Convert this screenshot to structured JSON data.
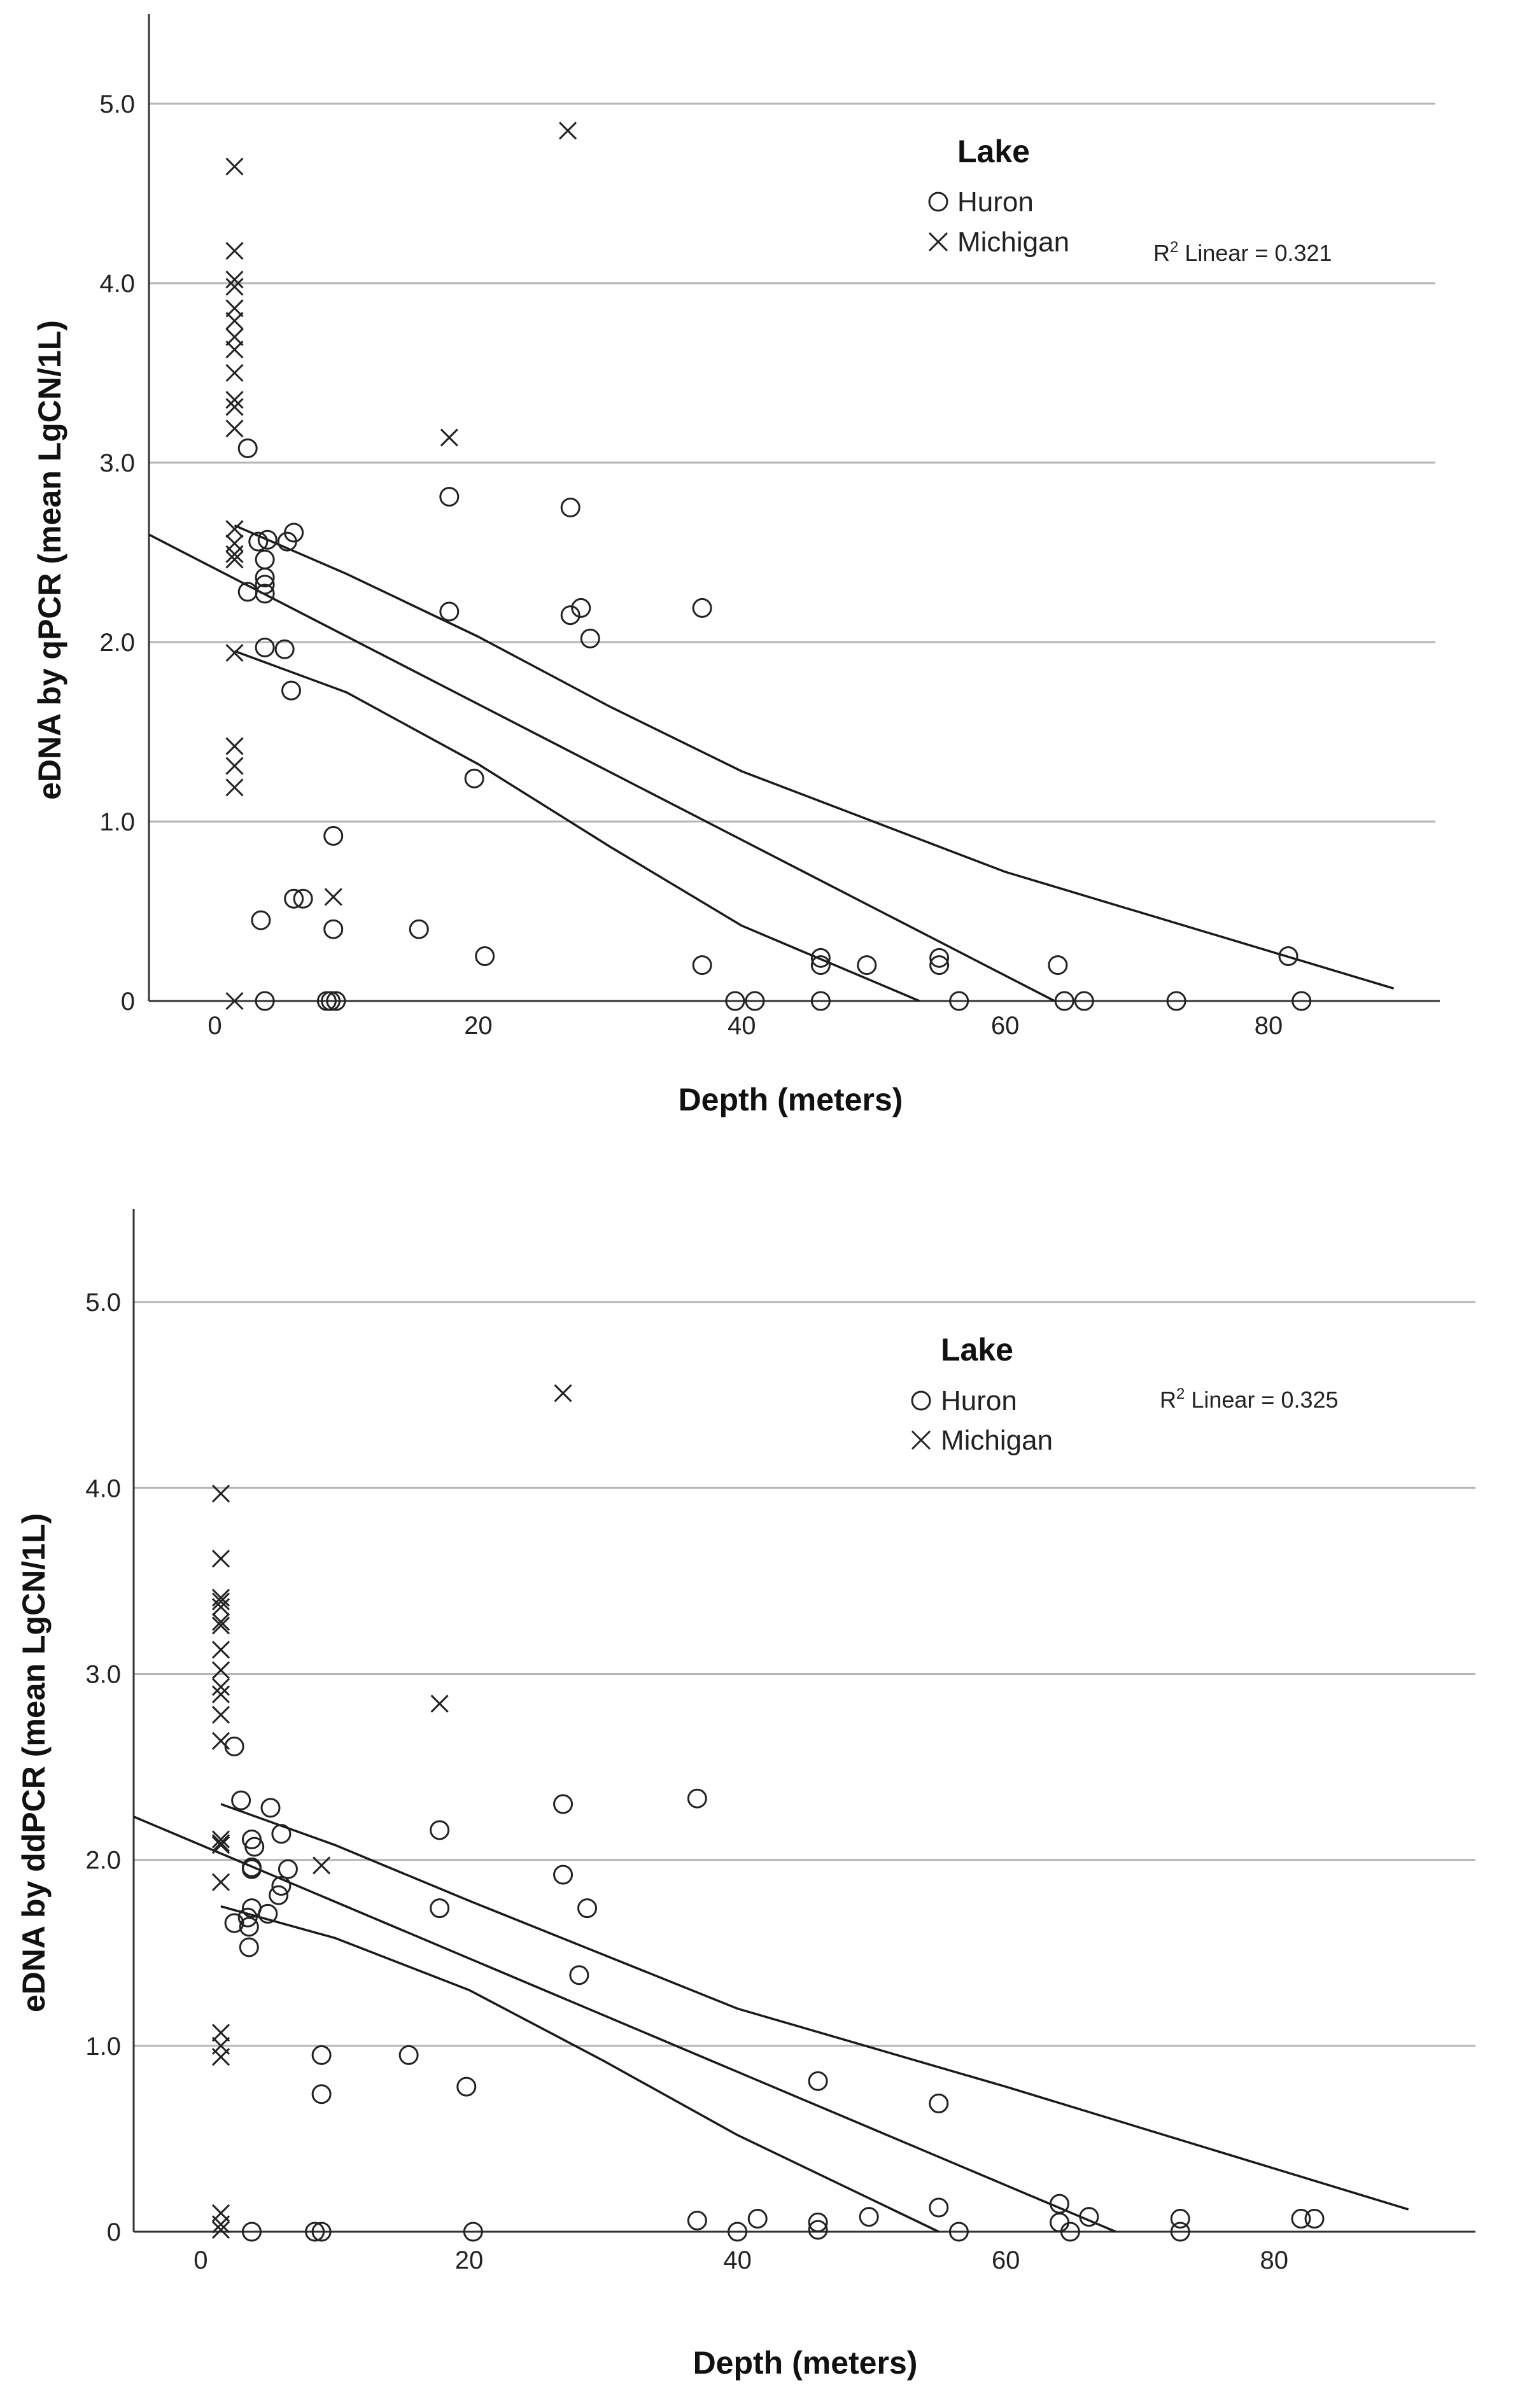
{
  "chart_data": [
    {
      "type": "scatter",
      "title": "",
      "xlabel": "Depth (meters)",
      "ylabel": "eDNA by qPCR (mean LgCN/1L)",
      "xlim": [
        -5,
        93
      ],
      "ylim": [
        0,
        5.5
      ],
      "xticks": [
        0,
        20,
        40,
        60,
        80
      ],
      "yticks": [
        0,
        1.0,
        2.0,
        3.0,
        4.0,
        5.0
      ],
      "xtick_labels": [
        "0",
        "20",
        "40",
        "60",
        "80"
      ],
      "ytick_labels": [
        "0",
        "1.0",
        "2.0",
        "3.0",
        "4.0",
        "5.0"
      ],
      "grid": "horizontal",
      "legend": {
        "title": "Lake",
        "position": "top-right",
        "entries": [
          {
            "label": "Huron",
            "marker": "circle"
          },
          {
            "label": "Michigan",
            "marker": "x"
          }
        ]
      },
      "annotation": {
        "r2_prefix": "R",
        "r2_sup": "2",
        "r2_suffix": " Linear = 0.321"
      },
      "fit": {
        "slope": -0.0378,
        "intercept": 2.41
      },
      "ci_lower": [
        [
          1.5,
          1.95
        ],
        [
          10,
          1.72
        ],
        [
          20,
          1.32
        ],
        [
          30,
          0.86
        ],
        [
          40,
          0.42
        ],
        [
          53.5,
          0.0
        ]
      ],
      "ci_upper": [
        [
          1.5,
          2.65
        ],
        [
          10,
          2.38
        ],
        [
          20,
          2.03
        ],
        [
          30,
          1.64
        ],
        [
          40,
          1.28
        ],
        [
          60,
          0.72
        ],
        [
          89.5,
          0.07
        ]
      ],
      "series": [
        {
          "name": "Huron",
          "marker": "circle",
          "points": [
            [
              2.5,
              3.08
            ],
            [
              3.3,
              2.56
            ],
            [
              4.0,
              2.57
            ],
            [
              6.0,
              2.61
            ],
            [
              5.5,
              2.56
            ],
            [
              2.5,
              2.28
            ],
            [
              3.8,
              2.46
            ],
            [
              3.8,
              2.36
            ],
            [
              3.8,
              2.32
            ],
            [
              3.8,
              2.27
            ],
            [
              3.8,
              1.97
            ],
            [
              5.3,
              1.96
            ],
            [
              5.8,
              1.73
            ],
            [
              9.0,
              0.92
            ],
            [
              6.0,
              0.57
            ],
            [
              6.7,
              0.57
            ],
            [
              3.5,
              0.45
            ],
            [
              9.0,
              0.4
            ],
            [
              15.5,
              0.4
            ],
            [
              20.5,
              0.25
            ],
            [
              3.8,
              0.0
            ],
            [
              8.5,
              0.0
            ],
            [
              8.8,
              0.0
            ],
            [
              9.2,
              0.0
            ],
            [
              17.8,
              2.81
            ],
            [
              17.8,
              2.17
            ],
            [
              19.7,
              1.24
            ],
            [
              27.0,
              2.75
            ],
            [
              27.0,
              2.15
            ],
            [
              27.8,
              2.19
            ],
            [
              28.5,
              2.02
            ],
            [
              37.0,
              2.19
            ],
            [
              37.0,
              0.2
            ],
            [
              39.5,
              0.0
            ],
            [
              41.0,
              0.0
            ],
            [
              46.0,
              0.24
            ],
            [
              46.0,
              0.2
            ],
            [
              46.0,
              0.0
            ],
            [
              49.5,
              0.2
            ],
            [
              55.0,
              0.24
            ],
            [
              55.0,
              0.2
            ],
            [
              56.5,
              0.0
            ],
            [
              64.0,
              0.2
            ],
            [
              64.5,
              0.0
            ],
            [
              66.0,
              0.0
            ],
            [
              73.0,
              0.0
            ],
            [
              81.5,
              0.25
            ],
            [
              82.5,
              0.0
            ]
          ]
        },
        {
          "name": "Michigan",
          "marker": "x",
          "points": [
            [
              1.5,
              4.65
            ],
            [
              1.5,
              4.18
            ],
            [
              1.5,
              4.02
            ],
            [
              1.5,
              3.98
            ],
            [
              1.5,
              3.86
            ],
            [
              1.5,
              3.79
            ],
            [
              1.5,
              3.7
            ],
            [
              1.5,
              3.63
            ],
            [
              1.5,
              3.5
            ],
            [
              1.5,
              3.35
            ],
            [
              1.5,
              3.31
            ],
            [
              1.5,
              3.19
            ],
            [
              1.5,
              2.63
            ],
            [
              1.5,
              2.55
            ],
            [
              1.5,
              2.49
            ],
            [
              1.5,
              2.46
            ],
            [
              1.5,
              1.94
            ],
            [
              1.5,
              1.42
            ],
            [
              1.5,
              1.31
            ],
            [
              1.5,
              1.19
            ],
            [
              1.5,
              0.0
            ],
            [
              9.0,
              0.58
            ],
            [
              17.8,
              3.14
            ],
            [
              26.8,
              4.85
            ]
          ]
        }
      ]
    },
    {
      "type": "scatter",
      "title": "",
      "xlabel": "Depth (meters)",
      "ylabel": "eDNA by ddPCR (mean LgCN/1L)",
      "xlim": [
        -5,
        95
      ],
      "ylim": [
        0,
        5.5
      ],
      "xticks": [
        0,
        20,
        40,
        60,
        80
      ],
      "yticks": [
        0,
        1.0,
        2.0,
        3.0,
        4.0,
        5.0
      ],
      "xtick_labels": [
        "0",
        "20",
        "40",
        "60",
        "80"
      ],
      "ytick_labels": [
        "0",
        "1.0",
        "2.0",
        "3.0",
        "4.0",
        "5.0"
      ],
      "grid": "horizontal",
      "legend": {
        "title": "Lake",
        "position": "top-right",
        "entries": [
          {
            "label": "Huron",
            "marker": "circle"
          },
          {
            "label": "Michigan",
            "marker": "x"
          }
        ]
      },
      "annotation": {
        "r2_prefix": "R",
        "r2_sup": "2",
        "r2_suffix": " Linear = 0.325"
      },
      "fit": {
        "slope": -0.0305,
        "intercept": 2.08
      },
      "ci_lower": [
        [
          1.5,
          1.75
        ],
        [
          10,
          1.58
        ],
        [
          20,
          1.3
        ],
        [
          30,
          0.92
        ],
        [
          40,
          0.52
        ],
        [
          55,
          0.0
        ]
      ],
      "ci_upper": [
        [
          1.5,
          2.3
        ],
        [
          10,
          2.08
        ],
        [
          20,
          1.78
        ],
        [
          30,
          1.49
        ],
        [
          40,
          1.2
        ],
        [
          60,
          0.78
        ],
        [
          90,
          0.12
        ]
      ],
      "series": [
        {
          "name": "Huron",
          "marker": "circle",
          "points": [
            [
              2.5,
              2.61
            ],
            [
              3.0,
              2.32
            ],
            [
              5.2,
              2.28
            ],
            [
              6.0,
              2.14
            ],
            [
              3.8,
              2.11
            ],
            [
              4.0,
              2.07
            ],
            [
              3.8,
              1.96
            ],
            [
              3.8,
              1.95
            ],
            [
              6.5,
              1.95
            ],
            [
              6.0,
              1.86
            ],
            [
              5.8,
              1.81
            ],
            [
              3.8,
              1.74
            ],
            [
              5.0,
              1.71
            ],
            [
              3.5,
              1.69
            ],
            [
              2.5,
              1.66
            ],
            [
              3.6,
              1.64
            ],
            [
              3.6,
              1.53
            ],
            [
              9.0,
              0.95
            ],
            [
              9.0,
              0.74
            ],
            [
              15.5,
              0.95
            ],
            [
              3.8,
              0.0
            ],
            [
              8.5,
              0.0
            ],
            [
              9.0,
              0.0
            ],
            [
              20.3,
              0.0
            ],
            [
              17.8,
              2.16
            ],
            [
              17.8,
              1.74
            ],
            [
              19.8,
              0.78
            ],
            [
              27.0,
              2.3
            ],
            [
              27.0,
              1.92
            ],
            [
              28.8,
              1.74
            ],
            [
              28.2,
              1.38
            ],
            [
              37.0,
              2.33
            ],
            [
              37.0,
              0.06
            ],
            [
              40.0,
              0.0
            ],
            [
              41.5,
              0.07
            ],
            [
              46.0,
              0.81
            ],
            [
              46.0,
              0.05
            ],
            [
              46.0,
              0.01
            ],
            [
              49.8,
              0.08
            ],
            [
              55.0,
              0.69
            ],
            [
              55.0,
              0.13
            ],
            [
              56.5,
              0.0
            ],
            [
              64.0,
              0.15
            ],
            [
              64.0,
              0.05
            ],
            [
              64.8,
              0.0
            ],
            [
              66.2,
              0.08
            ],
            [
              73.0,
              0.07
            ],
            [
              73.0,
              0.0
            ],
            [
              82.0,
              0.07
            ],
            [
              83.0,
              0.07
            ]
          ]
        },
        {
          "name": "Michigan",
          "marker": "x",
          "points": [
            [
              1.5,
              3.97
            ],
            [
              1.5,
              3.62
            ],
            [
              1.5,
              3.41
            ],
            [
              1.5,
              3.39
            ],
            [
              1.5,
              3.36
            ],
            [
              1.5,
              3.28
            ],
            [
              1.5,
              3.26
            ],
            [
              1.5,
              3.13
            ],
            [
              1.5,
              3.02
            ],
            [
              1.5,
              2.93
            ],
            [
              1.5,
              2.89
            ],
            [
              1.5,
              2.78
            ],
            [
              1.5,
              2.64
            ],
            [
              1.5,
              2.11
            ],
            [
              1.5,
              2.09
            ],
            [
              1.5,
              2.08
            ],
            [
              1.5,
              1.88
            ],
            [
              1.5,
              1.07
            ],
            [
              1.5,
              1.0
            ],
            [
              1.5,
              0.94
            ],
            [
              1.5,
              0.1
            ],
            [
              1.5,
              0.04
            ],
            [
              1.5,
              0.01
            ],
            [
              9.0,
              1.97
            ],
            [
              17.8,
              2.84
            ],
            [
              27.0,
              4.51
            ]
          ]
        }
      ]
    }
  ]
}
